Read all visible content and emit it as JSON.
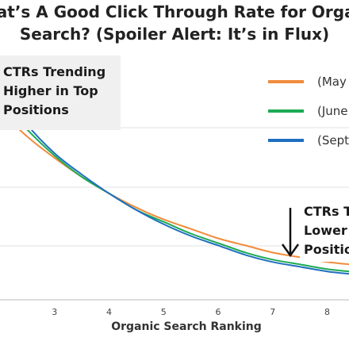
{
  "chart_data": {
    "type": "line",
    "title": [
      "What’s A Good Click Through Rate for Organic",
      "Search? (Spoiler Alert: It’s in Flux)"
    ],
    "xlabel": "Organic Search Ranking",
    "ylabel": "",
    "x_ticks": [
      "3",
      "4",
      "5",
      "6",
      "7",
      "8"
    ],
    "xlim": [
      2,
      8.4
    ],
    "grid": "horizontal",
    "legend_position": "top-right",
    "annotations": [
      {
        "lines": [
          "CTRs Trending",
          "Higher in Top",
          "Positions"
        ],
        "arrow": "up-left"
      },
      {
        "lines": [
          "CTRs T",
          "Lower",
          "Positio"
        ],
        "arrow": "down"
      }
    ],
    "series": [
      {
        "name": "(May",
        "color": "#f08c3c",
        "x": [
          2,
          2.5,
          3,
          3.5,
          4,
          4.5,
          5,
          5.5,
          6,
          6.5,
          7,
          7.5,
          8,
          8.4
        ],
        "values": [
          100,
          89,
          80,
          72,
          65,
          59,
          54,
          50,
          46,
          43,
          40,
          38,
          36,
          35
        ]
      },
      {
        "name": "(June",
        "color": "#1daa55",
        "x": [
          2,
          2.5,
          3,
          3.5,
          4,
          4.5,
          5,
          5.5,
          6,
          6.5,
          7,
          7.5,
          8,
          8.4
        ],
        "values": [
          105,
          92,
          81,
          72,
          65,
          58,
          53,
          48,
          44,
          40,
          37,
          35,
          33,
          32
        ]
      },
      {
        "name": "(Sept",
        "color": "#1f6fbf",
        "x": [
          2,
          2.5,
          3,
          3.5,
          4,
          4.5,
          5,
          5.5,
          6,
          6.5,
          7,
          7.5,
          8,
          8.4
        ],
        "values": [
          110,
          94,
          82,
          73,
          65,
          58,
          52,
          47,
          43,
          39,
          36,
          34,
          32,
          31
        ]
      }
    ]
  }
}
